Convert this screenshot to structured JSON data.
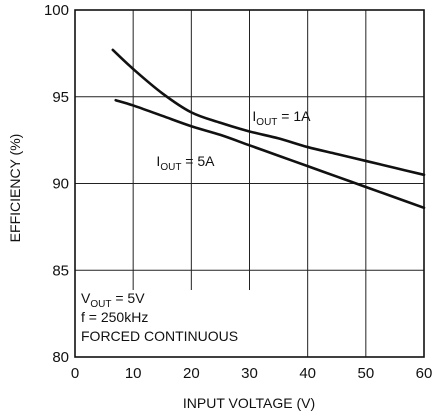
{
  "chart_data": {
    "type": "line",
    "xlabel": "INPUT VOLTAGE (V)",
    "ylabel": "EFFICIENCY (%)",
    "xlim": [
      0,
      60
    ],
    "ylim": [
      80,
      100
    ],
    "x_ticks": [
      0,
      10,
      20,
      30,
      40,
      50,
      60
    ],
    "y_ticks": [
      80,
      85,
      90,
      95,
      100
    ],
    "grid": true,
    "series": [
      {
        "name": "IOUT = 1A",
        "label_main": "I",
        "label_sub": "OUT",
        "label_rest": " = 1A",
        "label_pos": [
          30.5,
          93.6
        ],
        "color": "#111111",
        "points": [
          [
            6.5,
            97.7
          ],
          [
            10,
            96.6
          ],
          [
            15,
            95.2
          ],
          [
            20,
            94.1
          ],
          [
            25,
            93.5
          ],
          [
            30,
            93.0
          ],
          [
            35,
            92.6
          ],
          [
            40,
            92.1
          ],
          [
            45,
            91.7
          ],
          [
            50,
            91.3
          ],
          [
            55,
            90.9
          ],
          [
            60,
            90.5
          ]
        ]
      },
      {
        "name": "IOUT = 5A",
        "label_main": "I",
        "label_sub": "OUT",
        "label_rest": " = 5A",
        "label_pos": [
          14,
          91.0
        ],
        "color": "#111111",
        "points": [
          [
            7,
            94.8
          ],
          [
            10,
            94.5
          ],
          [
            15,
            93.9
          ],
          [
            20,
            93.3
          ],
          [
            25,
            92.8
          ],
          [
            30,
            92.2
          ],
          [
            35,
            91.6
          ],
          [
            40,
            91.0
          ],
          [
            45,
            90.4
          ],
          [
            50,
            89.8
          ],
          [
            55,
            89.2
          ],
          [
            60,
            88.6
          ]
        ]
      }
    ],
    "conditions": [
      {
        "main": "V",
        "sub": "OUT",
        "rest": " = 5V"
      },
      {
        "main": "f = 250kHz",
        "sub": "",
        "rest": ""
      },
      {
        "main": "FORCED CONTINUOUS",
        "sub": "",
        "rest": ""
      }
    ]
  }
}
